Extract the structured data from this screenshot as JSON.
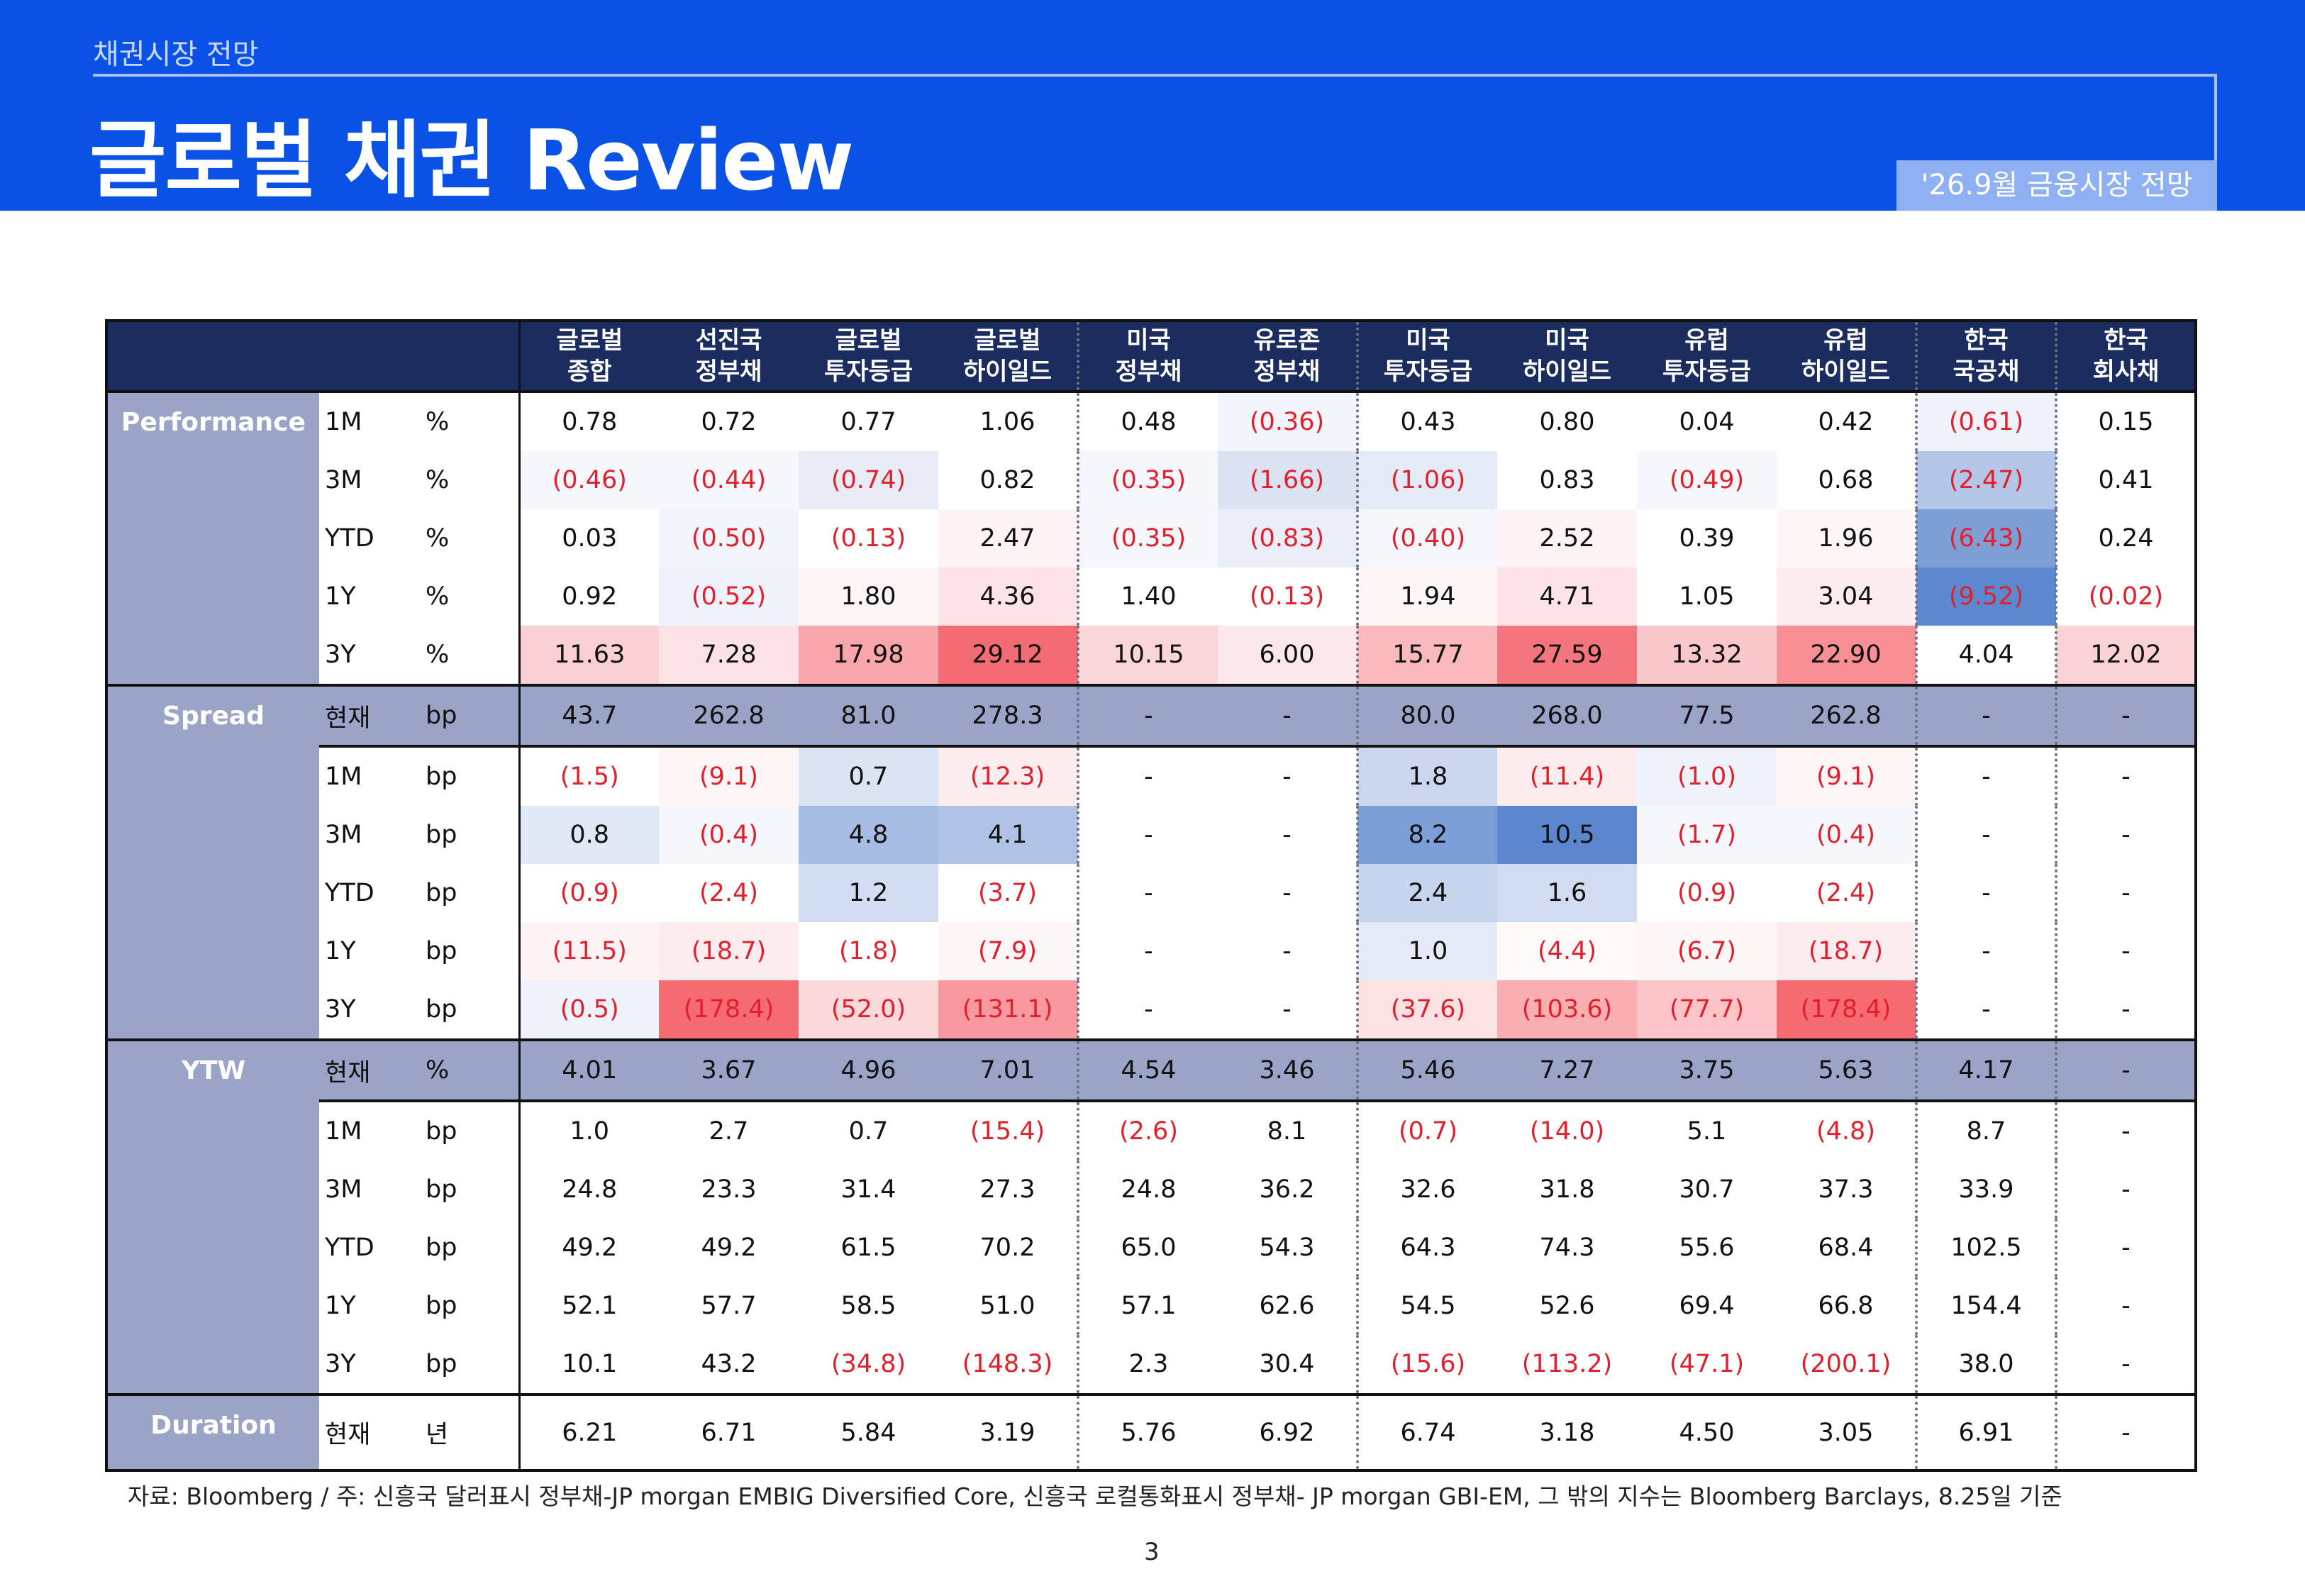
{
  "header": {
    "breadcrumb": "채권시장 전망",
    "title": "글로벌 채권 Review",
    "badge": "'26.9월 금융시장 전망"
  },
  "table": {
    "columns": [
      {
        "l1": "글로벌",
        "l2": "종합"
      },
      {
        "l1": "선진국",
        "l2": "정부채"
      },
      {
        "l1": "글로벌",
        "l2": "투자등급"
      },
      {
        "l1": "글로벌",
        "l2": "하이일드"
      },
      {
        "l1": "미국",
        "l2": "정부채"
      },
      {
        "l1": "유로존",
        "l2": "정부채"
      },
      {
        "l1": "미국",
        "l2": "투자등급"
      },
      {
        "l1": "미국",
        "l2": "하이일드"
      },
      {
        "l1": "유럽",
        "l2": "투자등급"
      },
      {
        "l1": "유럽",
        "l2": "하이일드"
      },
      {
        "l1": "한국",
        "l2": "국공채"
      },
      {
        "l1": "한국",
        "l2": "회사채"
      }
    ],
    "sections": [
      {
        "name": "Performance",
        "rows": [
          {
            "period": "1M",
            "unit": "%",
            "values": [
              "0.78",
              "0.72",
              "0.77",
              "1.06",
              "0.48",
              "(0.36)",
              "0.43",
              "0.80",
              "0.04",
              "0.42",
              "(0.61)",
              "0.15"
            ],
            "colors": [
              "#ffffff",
              "#ffffff",
              "#ffffff",
              "#ffffff",
              "#ffffff",
              "#f2f5fb",
              "#ffffff",
              "#ffffff",
              "#ffffff",
              "#ffffff",
              "#eef2fa",
              "#ffffff"
            ]
          },
          {
            "period": "3M",
            "unit": "%",
            "values": [
              "(0.46)",
              "(0.44)",
              "(0.74)",
              "0.82",
              "(0.35)",
              "(1.66)",
              "(1.06)",
              "0.83",
              "(0.49)",
              "0.68",
              "(2.47)",
              "0.41"
            ],
            "colors": [
              "#f5f7fc",
              "#f5f7fc",
              "#e7ecf7",
              "#ffffff",
              "#f5f7fc",
              "#dbe3f3",
              "#e4eaf6",
              "#ffffff",
              "#f5f7fc",
              "#ffffff",
              "#b4c6e7",
              "#ffffff"
            ]
          },
          {
            "period": "YTD",
            "unit": "%",
            "values": [
              "0.03",
              "(0.50)",
              "(0.13)",
              "2.47",
              "(0.35)",
              "(0.83)",
              "(0.40)",
              "2.52",
              "0.39",
              "1.96",
              "(6.43)",
              "0.24"
            ],
            "colors": [
              "#ffffff",
              "#f2f5fb",
              "#ffffff",
              "#fdf3f4",
              "#f5f7fc",
              "#e9eef8",
              "#f5f7fc",
              "#fdf3f4",
              "#ffffff",
              "#fdf5f6",
              "#7d9fd6",
              "#ffffff"
            ]
          },
          {
            "period": "1Y",
            "unit": "%",
            "values": [
              "0.92",
              "(0.52)",
              "1.80",
              "4.36",
              "1.40",
              "(0.13)",
              "1.94",
              "4.71",
              "1.05",
              "3.04",
              "(9.52)",
              "(0.02)"
            ],
            "colors": [
              "#ffffff",
              "#eef2fa",
              "#fdf5f6",
              "#fce4e6",
              "#ffffff",
              "#ffffff",
              "#fdf5f6",
              "#fce4e6",
              "#ffffff",
              "#fcecee",
              "#5b88cf",
              "#ffffff"
            ]
          },
          {
            "period": "3Y",
            "unit": "%",
            "values": [
              "11.63",
              "7.28",
              "17.98",
              "29.12",
              "10.15",
              "6.00",
              "15.77",
              "27.59",
              "13.32",
              "22.90",
              "4.04",
              "12.02"
            ],
            "colors": [
              "#fbd0d4",
              "#fce2e4",
              "#f8a6ab",
              "#f46c73",
              "#fbd6d9",
              "#fce8ea",
              "#f9b9bd",
              "#f5757c",
              "#fac8cb",
              "#f78f95",
              "#ffffff",
              "#fbd3d6"
            ]
          }
        ]
      },
      {
        "name": "Spread",
        "rows": [
          {
            "period": "현재",
            "unit": "bp",
            "highlight": true,
            "values": [
              "43.7",
              "262.8",
              "81.0",
              "278.3",
              "-",
              "-",
              "80.0",
              "268.0",
              "77.5",
              "262.8",
              "-",
              "-"
            ],
            "colors": []
          },
          {
            "period": "1M",
            "unit": "bp",
            "values": [
              "(1.5)",
              "(9.1)",
              "0.7",
              "(12.3)",
              "-",
              "-",
              "1.8",
              "(11.4)",
              "(1.0)",
              "(9.1)",
              "-",
              "-"
            ],
            "colors": [
              "#ffffff",
              "#fdf5f6",
              "#dbe4f3",
              "#fbeced",
              "#ffffff",
              "#ffffff",
              "#c9d6ee",
              "#fbeced",
              "#eef2fa",
              "#fdf5f6",
              "#ffffff",
              "#ffffff"
            ]
          },
          {
            "period": "3M",
            "unit": "bp",
            "values": [
              "0.8",
              "(0.4)",
              "4.8",
              "4.1",
              "-",
              "-",
              "8.2",
              "10.5",
              "(1.7)",
              "(0.4)",
              "-",
              "-"
            ],
            "colors": [
              "#e1e8f5",
              "#f5f7fc",
              "#a6bce3",
              "#b0c3e6",
              "#ffffff",
              "#ffffff",
              "#7c9fd7",
              "#5a87cd",
              "#f5f7fc",
              "#f5f7fc",
              "#ffffff",
              "#ffffff"
            ]
          },
          {
            "period": "YTD",
            "unit": "bp",
            "values": [
              "(0.9)",
              "(2.4)",
              "1.2",
              "(3.7)",
              "-",
              "-",
              "2.4",
              "1.6",
              "(0.9)",
              "(2.4)",
              "-",
              "-"
            ],
            "colors": [
              "#ffffff",
              "#ffffff",
              "#d3ddf1",
              "#ffffff",
              "#ffffff",
              "#ffffff",
              "#c6d4ed",
              "#d2dcf0",
              "#ffffff",
              "#ffffff",
              "#ffffff",
              "#ffffff"
            ]
          },
          {
            "period": "1Y",
            "unit": "bp",
            "values": [
              "(11.5)",
              "(18.7)",
              "(1.8)",
              "(7.9)",
              "-",
              "-",
              "1.0",
              "(4.4)",
              "(6.7)",
              "(18.7)",
              "-",
              "-"
            ],
            "colors": [
              "#fdf3f4",
              "#fdecee",
              "#ffffff",
              "#fdf6f7",
              "#ffffff",
              "#ffffff",
              "#e4eaf6",
              "#fefafa",
              "#fdf6f7",
              "#fdecee",
              "#ffffff",
              "#ffffff"
            ]
          },
          {
            "period": "3Y",
            "unit": "bp",
            "values": [
              "(0.5)",
              "(178.4)",
              "(52.0)",
              "(131.1)",
              "-",
              "-",
              "(37.6)",
              "(103.6)",
              "(77.7)",
              "(178.4)",
              "-",
              "-"
            ],
            "colors": [
              "#eef2fa",
              "#f66b72",
              "#fcdadc",
              "#f8999f",
              "#ffffff",
              "#ffffff",
              "#fde2e4",
              "#f9aeb2",
              "#fbc5c8",
              "#f66b72",
              "#ffffff",
              "#ffffff"
            ]
          }
        ]
      },
      {
        "name": "YTW",
        "rows": [
          {
            "period": "현재",
            "unit": "%",
            "highlight": true,
            "values": [
              "4.01",
              "3.67",
              "4.96",
              "7.01",
              "4.54",
              "3.46",
              "5.46",
              "7.27",
              "3.75",
              "5.63",
              "4.17",
              "-"
            ],
            "colors": []
          },
          {
            "period": "1M",
            "unit": "bp",
            "values": [
              "1.0",
              "2.7",
              "0.7",
              "(15.4)",
              "(2.6)",
              "8.1",
              "(0.7)",
              "(14.0)",
              "5.1",
              "(4.8)",
              "8.7",
              "-"
            ],
            "colors": []
          },
          {
            "period": "3M",
            "unit": "bp",
            "values": [
              "24.8",
              "23.3",
              "31.4",
              "27.3",
              "24.8",
              "36.2",
              "32.6",
              "31.8",
              "30.7",
              "37.3",
              "33.9",
              "-"
            ],
            "colors": []
          },
          {
            "period": "YTD",
            "unit": "bp",
            "values": [
              "49.2",
              "49.2",
              "61.5",
              "70.2",
              "65.0",
              "54.3",
              "64.3",
              "74.3",
              "55.6",
              "68.4",
              "102.5",
              "-"
            ],
            "colors": []
          },
          {
            "period": "1Y",
            "unit": "bp",
            "values": [
              "52.1",
              "57.7",
              "58.5",
              "51.0",
              "57.1",
              "62.6",
              "54.5",
              "52.6",
              "69.4",
              "66.8",
              "154.4",
              "-"
            ],
            "colors": []
          },
          {
            "period": "3Y",
            "unit": "bp",
            "values": [
              "10.1",
              "43.2",
              "(34.8)",
              "(148.3)",
              "2.3",
              "30.4",
              "(15.6)",
              "(113.2)",
              "(47.1)",
              "(200.1)",
              "38.0",
              "-"
            ],
            "colors": []
          }
        ]
      },
      {
        "name": "Duration",
        "rows": [
          {
            "period": "현재",
            "unit": "년",
            "values": [
              "6.21",
              "6.71",
              "5.84",
              "3.19",
              "5.76",
              "6.92",
              "6.74",
              "3.18",
              "4.50",
              "3.05",
              "6.91",
              "-"
            ],
            "colors": []
          }
        ]
      }
    ]
  },
  "footnote": "자료: Bloomberg / 주: 신흥국 달러표시 정부채-JP morgan EMBIG Diversified Core, 신흥국 로컬통화표시 정부채- JP morgan GBI-EM, 그 밖의 지수는 Bloomberg Barclays, 8.25일 기준",
  "page_number": "3"
}
